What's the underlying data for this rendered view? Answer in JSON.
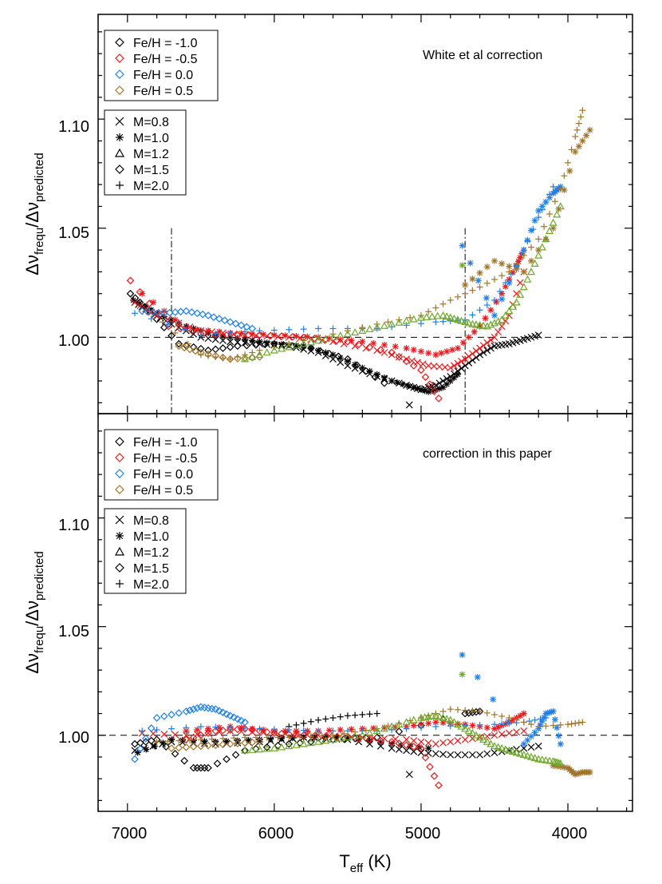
{
  "figure": {
    "xlabel_main": "T",
    "xlabel_sub": "eff",
    "xlabel_unit": " (K)",
    "ylabel_parts": {
      "delta": "Δν",
      "num_sub": "frequ",
      "slash": "/",
      "den_sub": "predicted"
    }
  },
  "chart_data": [
    {
      "type": "scatter",
      "panel": "top",
      "annotation": "White et al correction",
      "xlim": [
        7200,
        3560
      ],
      "ylim": [
        0.965,
        1.148
      ],
      "xticks": [
        7000,
        6000,
        5000,
        4000
      ],
      "yticks": [
        1.0,
        1.05,
        1.1
      ],
      "ytick_labels": [
        "1.00",
        "1.05",
        "1.10"
      ],
      "reference_line_y": 1.0,
      "vertical_lines_x": [
        6700,
        4700
      ],
      "legend_metallicity": [
        {
          "label": "Fe/H = -1.0",
          "color": "#000000"
        },
        {
          "label": "Fe/H = -0.5",
          "color": "#e8191b"
        },
        {
          "label": "Fe/H = 0.0",
          "color": "#1f7fe8"
        },
        {
          "label": "Fe/H = 0.5",
          "color": "#a0742a"
        }
      ],
      "legend_mass": [
        {
          "label": "M=0.8",
          "marker": "cross"
        },
        {
          "label": "M=1.0",
          "marker": "asterisk"
        },
        {
          "label": "M=1.2",
          "marker": "triangle"
        },
        {
          "label": "M=1.5",
          "marker": "diamond"
        },
        {
          "label": "M=2.0",
          "marker": "plus"
        }
      ],
      "series": [
        {
          "feh": -1.0,
          "color": "#000000",
          "marker": "cross",
          "x": [
            6950,
            6850,
            6700,
            6500,
            6300,
            6100,
            5900,
            5700,
            5500,
            5300,
            5100,
            5000,
            4900,
            4800,
            4700,
            4600,
            4500,
            4400,
            4300,
            4200
          ],
          "y": [
            1.016,
            1.012,
            1.006,
            1.0,
            0.998,
            0.997,
            0.996,
            0.993,
            0.987,
            0.982,
            0.978,
            0.976,
            0.978,
            0.982,
            0.987,
            0.992,
            0.996,
            0.997,
            0.999,
            1.001
          ]
        },
        {
          "feh": -1.0,
          "color": "#000000",
          "marker": "asterisk",
          "x": [
            6960,
            6800,
            6600,
            6400,
            6200,
            6000,
            5800,
            5600,
            5400,
            5200,
            5050,
            4950,
            4850,
            4750
          ],
          "y": [
            1.017,
            1.011,
            1.005,
            1.001,
            0.999,
            0.997,
            0.996,
            0.992,
            0.986,
            0.98,
            0.977,
            0.975,
            0.977,
            0.983
          ]
        },
        {
          "feh": -1.0,
          "color": "#000000",
          "marker": "diamond",
          "x": [
            6980,
            6850,
            6650,
            6450,
            6250,
            6000,
            5750,
            5500,
            5250
          ],
          "y": [
            1.02,
            1.012,
            0.997,
            0.994,
            0.996,
            0.997,
            0.995,
            0.99,
            0.979
          ]
        },
        {
          "feh": -1.0,
          "color": "#000000",
          "marker": "single",
          "x": [
            5080
          ],
          "y": [
            0.969
          ]
        },
        {
          "feh": -0.5,
          "color": "#e8191b",
          "marker": "cross",
          "x": [
            6950,
            6800,
            6500,
            6200,
            5900,
            5600,
            5300,
            5100,
            4950,
            4800,
            4700,
            4600,
            4500,
            4400,
            4300
          ],
          "y": [
            1.016,
            1.01,
            1.003,
            1.001,
            1.0,
            0.998,
            0.994,
            0.99,
            0.987,
            0.986,
            0.99,
            0.995,
            1.0,
            1.01,
            1.03
          ]
        },
        {
          "feh": -0.5,
          "color": "#e8191b",
          "marker": "asterisk",
          "x": [
            6900,
            6600,
            6300,
            6000,
            5700,
            5400,
            5100,
            4900,
            4750,
            4600,
            4450,
            4350,
            4300
          ],
          "y": [
            1.02,
            1.004,
            1.002,
            1.001,
            1.0,
            0.998,
            0.995,
            0.992,
            0.995,
            1.005,
            1.02,
            1.033,
            1.04
          ]
        },
        {
          "feh": -0.5,
          "color": "#e8191b",
          "marker": "diamond",
          "x": [
            6980,
            6720,
            6400,
            6100,
            5800,
            5500,
            5200,
            5000,
            4880
          ],
          "y": [
            1.026,
            1.005,
            1.001,
            1.001,
            1.0,
            0.998,
            0.993,
            0.985,
            0.972
          ]
        },
        {
          "feh": 0.0,
          "color": "#1f7fe8",
          "marker": "diamond",
          "x": [
            6900,
            6750,
            6600,
            6450,
            6300,
            6150
          ],
          "y": [
            1.012,
            1.011,
            1.012,
            1.01,
            1.007,
            1.004
          ]
        },
        {
          "feh": 0.0,
          "color": "#1f7fe8",
          "marker": "plus",
          "x": [
            6950,
            6500,
            6100,
            5700,
            5300,
            4900,
            4700,
            4500,
            4350,
            4200,
            4100
          ],
          "y": [
            1.011,
            1.001,
            1.003,
            1.004,
            1.004,
            1.007,
            1.008,
            1.017,
            1.033,
            1.055,
            1.069
          ]
        },
        {
          "feh": 0.0,
          "color": "#1f7fe8",
          "marker": "asterisk",
          "x": [
            4720,
            4500,
            4300,
            4200,
            4100,
            4050
          ],
          "y": [
            1.042,
            1.01,
            1.04,
            1.058,
            1.066,
            1.069
          ]
        },
        {
          "feh": 0.5,
          "color": "#a0742a",
          "marker": "plus",
          "x": [
            6850,
            6500,
            6300,
            6100,
            5700,
            5300,
            5000,
            4800,
            4600,
            4400,
            4200,
            4050,
            3950,
            3900
          ],
          "y": [
            1.012,
            0.992,
            0.99,
            0.994,
            1.0,
            1.006,
            1.01,
            1.017,
            1.023,
            1.03,
            1.045,
            1.068,
            1.092,
            1.104
          ]
        },
        {
          "feh": 0.5,
          "color": "#a0742a",
          "marker": "asterisk",
          "x": [
            4700,
            4500,
            4300,
            4100,
            3950,
            3850
          ],
          "y": [
            1.024,
            1.035,
            1.03,
            1.05,
            1.085,
            1.095
          ]
        },
        {
          "feh": 0.5,
          "color": "#a0742a",
          "marker": "diamond",
          "x": [
            6650,
            6500,
            6300,
            6100
          ],
          "y": [
            0.996,
            0.993,
            0.99,
            0.991
          ]
        },
        {
          "feh": 0.5,
          "color": "#6ea82a",
          "marker": "triangle",
          "x": [
            6200,
            6000,
            5800,
            5600,
            5400,
            5200,
            5000,
            4850,
            4750,
            4650,
            4550,
            4450,
            4350,
            4250,
            4150,
            4050
          ],
          "y": [
            0.99,
            0.994,
            0.997,
            1.0,
            1.003,
            1.006,
            1.009,
            1.01,
            1.008,
            1.006,
            1.005,
            1.008,
            1.016,
            1.03,
            1.045,
            1.06
          ]
        },
        {
          "feh": 0.5,
          "color": "#6ea82a",
          "marker": "asterisk",
          "x": [
            4720
          ],
          "y": [
            1.033
          ]
        }
      ]
    },
    {
      "type": "scatter",
      "panel": "bottom",
      "annotation": "correction in this paper",
      "xlim": [
        7200,
        3560
      ],
      "ylim": [
        0.965,
        1.148
      ],
      "xticks": [
        7000,
        6000,
        5000,
        4000
      ],
      "xtick_labels": [
        "7000",
        "6000",
        "5000",
        "4000"
      ],
      "yticks": [
        1.0,
        1.05,
        1.1
      ],
      "ytick_labels": [
        "1.00",
        "1.05",
        "1.10"
      ],
      "reference_line_y": 1.0,
      "legend_metallicity": [
        {
          "label": "Fe/H = -1.0",
          "color": "#000000"
        },
        {
          "label": "Fe/H = -0.5",
          "color": "#e8191b"
        },
        {
          "label": "Fe/H = 0.0",
          "color": "#1f7fe8"
        },
        {
          "label": "Fe/H = 0.5",
          "color": "#a0742a"
        }
      ],
      "legend_mass": [
        {
          "label": "M=0.8",
          "marker": "cross"
        },
        {
          "label": "M=1.0",
          "marker": "asterisk"
        },
        {
          "label": "M=1.2",
          "marker": "triangle"
        },
        {
          "label": "M=1.5",
          "marker": "diamond"
        },
        {
          "label": "M=2.0",
          "marker": "plus"
        }
      ],
      "series": [
        {
          "feh": -1.0,
          "color": "#000000",
          "marker": "cross",
          "x": [
            6950,
            6700,
            6400,
            6100,
            5800,
            5500,
            5200,
            5000,
            4800,
            4600,
            4400,
            4200
          ],
          "y": [
            0.993,
            0.997,
            0.996,
            0.997,
            0.999,
            0.998,
            0.994,
            0.992,
            0.991,
            0.991,
            0.993,
            0.995
          ]
        },
        {
          "feh": -1.0,
          "color": "#000000",
          "marker": "asterisk",
          "x": [
            6930,
            6700,
            6400,
            6100,
            5800,
            5500,
            5200,
            4950
          ],
          "y": [
            0.992,
            0.998,
            0.997,
            0.998,
            0.999,
            0.999,
            0.996,
            0.994
          ]
        },
        {
          "feh": -1.0,
          "color": "#000000",
          "marker": "diamond",
          "x": [
            6950,
            6800,
            6550,
            6450,
            6200,
            5900,
            5600,
            5300,
            4700,
            4600
          ],
          "y": [
            0.996,
            0.998,
            0.985,
            0.985,
            0.993,
            0.996,
            0.998,
            0.999,
            1.01,
            1.011
          ]
        },
        {
          "feh": -1.0,
          "color": "#000000",
          "marker": "plus",
          "x": [
            5900,
            5700,
            5500,
            5300
          ],
          "y": [
            1.004,
            1.007,
            1.009,
            1.01
          ]
        },
        {
          "feh": -1.0,
          "color": "#000000",
          "marker": "single",
          "x": [
            5080
          ],
          "y": [
            0.982
          ]
        },
        {
          "feh": -0.5,
          "color": "#e8191b",
          "marker": "cross",
          "x": [
            6900,
            6600,
            6300,
            6000,
            5700,
            5400,
            5100,
            4900,
            4700,
            4500,
            4300
          ],
          "y": [
            1.001,
            1.0,
            1.002,
            1.001,
            1.0,
            0.999,
            0.998,
            0.996,
            0.998,
            1.0,
            1.002
          ]
        },
        {
          "feh": -0.5,
          "color": "#e8191b",
          "marker": "asterisk",
          "x": [
            6600,
            6300,
            6000,
            5700,
            5400,
            5100,
            4900,
            4700,
            4500,
            4400,
            4300
          ],
          "y": [
            1.002,
            1.004,
            1.002,
            1.002,
            1.003,
            1.004,
            1.006,
            1.005,
            1.003,
            1.006,
            1.01
          ]
        },
        {
          "feh": -0.5,
          "color": "#e8191b",
          "marker": "diamond",
          "x": [
            6600,
            6400,
            6200,
            6000,
            5800,
            5500,
            5200,
            5000,
            4880
          ],
          "y": [
            0.998,
            1.002,
            1.003,
            1.001,
            1.0,
            0.999,
            0.997,
            0.994,
            0.977
          ]
        },
        {
          "feh": 0.0,
          "color": "#1f7fe8",
          "marker": "diamond",
          "x": [
            6950,
            6800,
            6600,
            6500,
            6400,
            6300,
            6200
          ],
          "y": [
            0.989,
            1.008,
            1.011,
            1.013,
            1.012,
            1.009,
            1.006
          ]
        },
        {
          "feh": 0.0,
          "color": "#1f7fe8",
          "marker": "plus",
          "x": [
            6900,
            6500,
            6100,
            5700,
            5300,
            4900,
            4500,
            4300,
            4150
          ],
          "y": [
            1.002,
            1.004,
            1.003,
            1.002,
            1.002,
            1.004,
            1.005,
            1.006,
            1.008
          ]
        },
        {
          "feh": 0.0,
          "color": "#1f7fe8",
          "marker": "asterisk",
          "x": [
            4720,
            4300,
            4200,
            4150,
            4100,
            4050
          ],
          "y": [
            1.037,
            0.996,
            1.003,
            1.01,
            1.011,
            0.996
          ]
        },
        {
          "feh": 0.5,
          "color": "#a0742a",
          "marker": "plus",
          "x": [
            6800,
            6500,
            6200,
            5900,
            5600,
            5300,
            5000,
            4800,
            4600,
            4400,
            4200,
            4000,
            3900
          ],
          "y": [
            0.997,
            0.998,
            0.999,
            0.999,
            1.0,
            1.003,
            1.008,
            1.012,
            1.011,
            1.008,
            1.004,
            1.005,
            1.006
          ]
        },
        {
          "feh": 0.5,
          "color": "#a0742a",
          "marker": "asterisk",
          "x": [
            4100,
            4000,
            3950,
            3900,
            3850
          ],
          "y": [
            0.986,
            0.985,
            0.982,
            0.983,
            0.983
          ]
        },
        {
          "feh": 0.5,
          "color": "#a0742a",
          "marker": "diamond",
          "x": [
            6700,
            6500,
            6300,
            6100
          ],
          "y": [
            0.994,
            0.995,
            0.996,
            0.997
          ]
        },
        {
          "feh": 0.5,
          "color": "#6ea82a",
          "marker": "triangle",
          "x": [
            6200,
            6000,
            5800,
            5600,
            5400,
            5200,
            5000,
            4900,
            4800,
            4700,
            4600,
            4500,
            4400,
            4300,
            4200,
            4100,
            4050
          ],
          "y": [
            0.993,
            0.994,
            0.996,
            0.998,
            1.0,
            1.004,
            1.008,
            1.009,
            1.007,
            1.003,
            0.999,
            0.995,
            0.993,
            0.991,
            0.989,
            0.988,
            0.987
          ]
        },
        {
          "feh": 0.5,
          "color": "#6ea82a",
          "marker": "asterisk",
          "x": [
            4720
          ],
          "y": [
            1.028
          ]
        }
      ]
    }
  ]
}
